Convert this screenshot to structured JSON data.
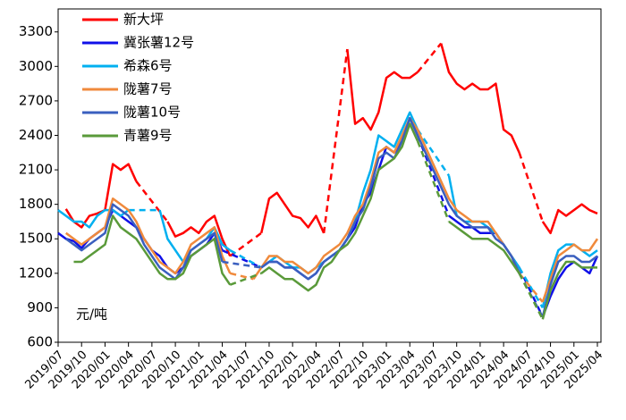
{
  "chart_data": {
    "type": "line",
    "annotation": "元/吨",
    "categories": [
      "2019/07",
      null,
      null,
      "2019/10",
      null,
      null,
      "2020/01",
      null,
      null,
      "2020/04",
      null,
      null,
      "2020/07",
      null,
      null,
      "2020/10",
      null,
      null,
      "2021/01",
      null,
      null,
      "2021/04",
      null,
      null,
      "2021/07",
      null,
      null,
      "2021/10",
      null,
      null,
      "2022/01",
      null,
      null,
      "2022/04",
      null,
      null,
      "2022/07",
      null,
      null,
      "2022/10",
      null,
      null,
      "2023/01",
      null,
      null,
      "2023/04",
      null,
      null,
      "2023/07",
      null,
      null,
      "2023/10",
      null,
      null,
      "2024/01",
      null,
      null,
      "2024/04",
      null,
      null,
      "2024/07",
      null,
      null,
      "2024/10",
      null,
      null,
      "2025/01",
      null,
      null,
      "2025/04"
    ],
    "ylim": [
      600,
      3500
    ],
    "yticks": [
      600,
      900,
      1200,
      1500,
      1800,
      2100,
      2400,
      2700,
      3000,
      3300
    ],
    "gaps": "dashed",
    "legend": "top-left",
    "series": [
      {
        "name": "新大坪",
        "color": "#ff0000",
        "values": [
          null,
          1760,
          1650,
          1600,
          1700,
          1720,
          1750,
          2150,
          2100,
          2150,
          2000,
          null,
          null,
          null,
          1650,
          1520,
          1550,
          1600,
          1550,
          1650,
          1700,
          1500,
          1350,
          null,
          null,
          null,
          1550,
          1850,
          1900,
          1800,
          1700,
          1680,
          1600,
          1700,
          1550,
          null,
          null,
          3150,
          2500,
          2550,
          2450,
          2600,
          2900,
          2950,
          2900,
          2900,
          2950,
          null,
          null,
          3200,
          2950,
          2850,
          2800,
          2850,
          2800,
          2800,
          2850,
          2450,
          2400,
          2250,
          null,
          null,
          1650,
          1550,
          1750,
          1700,
          1750,
          1800,
          1750,
          1720
        ]
      },
      {
        "name": "冀张薯12号",
        "color": "#1010e8",
        "values": [
          1550,
          1500,
          1480,
          1420,
          1500,
          1550,
          1600,
          1750,
          1700,
          1650,
          1600,
          1500,
          1400,
          1350,
          1250,
          1200,
          1250,
          1350,
          1400,
          1450,
          1550,
          1400,
          null,
          null,
          null,
          null,
          1250,
          1300,
          1300,
          1250,
          1250,
          1200,
          1150,
          1200,
          1300,
          1350,
          1400,
          1500,
          1600,
          1800,
          1900,
          2100,
          2300,
          2250,
          2350,
          2550,
          2400,
          null,
          null,
          null,
          1700,
          1650,
          1600,
          1600,
          1550,
          1550,
          1550,
          1450,
          1350,
          1250,
          null,
          null,
          820,
          1000,
          1150,
          1250,
          1300,
          1250,
          1200,
          1350
        ]
      },
      {
        "name": "希森6号",
        "color": "#00b0f0",
        "values": [
          1750,
          1700,
          1650,
          1650,
          1600,
          1700,
          1750,
          1750,
          1700,
          1750,
          null,
          null,
          null,
          1750,
          1500,
          1400,
          1300,
          1400,
          1450,
          1500,
          1600,
          1450,
          1400,
          null,
          null,
          null,
          1250,
          1300,
          1350,
          1300,
          1250,
          1250,
          1200,
          1250,
          1300,
          1350,
          1400,
          1500,
          1650,
          1900,
          2100,
          2400,
          2350,
          2300,
          2450,
          2600,
          2450,
          null,
          null,
          null,
          2050,
          1700,
          1650,
          1650,
          1650,
          1600,
          1550,
          1450,
          1350,
          1250,
          null,
          null,
          900,
          1200,
          1400,
          1450,
          1450,
          1400,
          1350,
          1400
        ]
      },
      {
        "name": "陇薯7号",
        "color": "#f08a3c",
        "values": [
          null,
          1550,
          1500,
          1450,
          1500,
          1550,
          1600,
          1850,
          1800,
          1750,
          1650,
          1500,
          1400,
          1300,
          1250,
          1200,
          1300,
          1450,
          1500,
          1550,
          1600,
          1350,
          1200,
          null,
          null,
          1150,
          1250,
          1350,
          1350,
          1300,
          1300,
          1250,
          1200,
          1250,
          1350,
          1400,
          1450,
          1550,
          1700,
          1800,
          2000,
          2250,
          2300,
          2250,
          2400,
          2550,
          2450,
          2300,
          2150,
          2000,
          1850,
          1750,
          1700,
          1650,
          1650,
          1650,
          1550,
          1450,
          1350,
          1200,
          null,
          null,
          950,
          1150,
          1350,
          1400,
          1450,
          1400,
          1400,
          1500
        ]
      },
      {
        "name": "陇薯10号",
        "color": "#3a5fbf",
        "values": [
          null,
          1500,
          1450,
          1400,
          1450,
          1500,
          1550,
          1800,
          1750,
          1700,
          1600,
          1450,
          1350,
          1250,
          1200,
          1150,
          1250,
          1400,
          1450,
          1500,
          1550,
          1300,
          null,
          null,
          null,
          null,
          1250,
          1300,
          1300,
          1250,
          1250,
          1200,
          1150,
          1200,
          1300,
          1350,
          1400,
          1500,
          1650,
          1750,
          1950,
          2200,
          2250,
          2200,
          2350,
          2550,
          2400,
          2250,
          2100,
          1950,
          1800,
          1700,
          1650,
          1600,
          1600,
          1600,
          1500,
          1450,
          1350,
          1200,
          null,
          null,
          820,
          1100,
          1300,
          1350,
          1350,
          1300,
          1300,
          1350
        ]
      },
      {
        "name": "青薯9号",
        "color": "#5a9a3a",
        "values": [
          null,
          null,
          1300,
          1300,
          1350,
          1400,
          1450,
          1700,
          1600,
          1550,
          1500,
          1400,
          1300,
          1200,
          1150,
          1150,
          1200,
          1350,
          1400,
          1450,
          1500,
          1200,
          1100,
          null,
          null,
          null,
          1200,
          1250,
          1200,
          1150,
          1150,
          1100,
          1050,
          1100,
          1250,
          1300,
          1400,
          1450,
          1550,
          1700,
          1850,
          2100,
          2150,
          2200,
          2300,
          2500,
          2350,
          null,
          null,
          null,
          1650,
          1600,
          1550,
          1500,
          1500,
          1500,
          1450,
          1400,
          1300,
          1200,
          null,
          null,
          800,
          1050,
          1200,
          1300,
          1300,
          1250,
          1250,
          1250
        ]
      }
    ]
  }
}
